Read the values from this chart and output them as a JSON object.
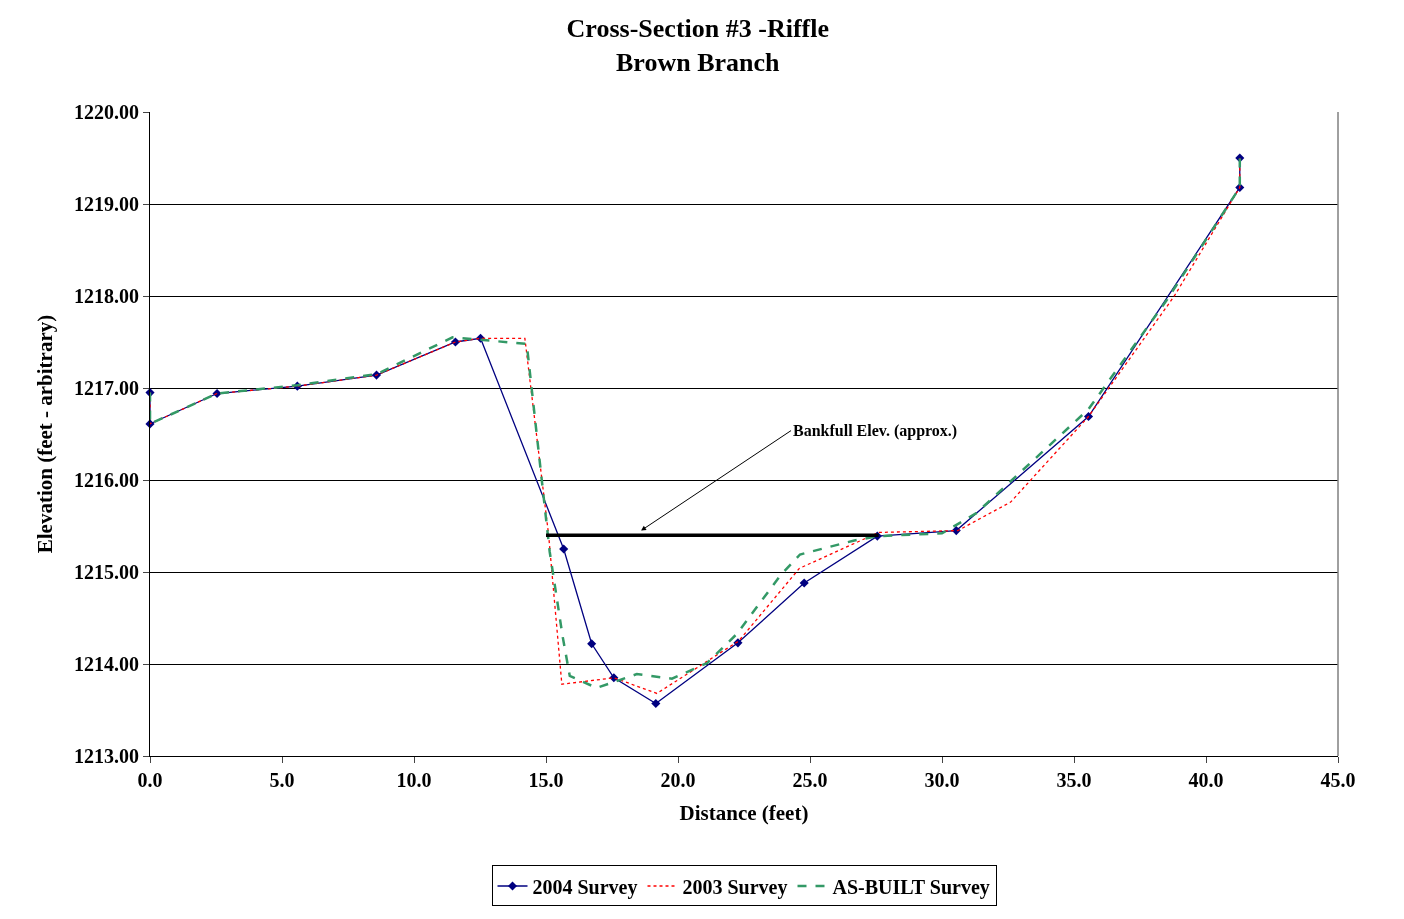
{
  "chart_data": {
    "type": "line",
    "title": "Cross-Section #3 -Riffle",
    "subtitle": "Brown Branch",
    "xlabel": "Distance (feet)",
    "ylabel": "Elevation (feet - arbitrary)",
    "xlim": [
      0,
      45
    ],
    "xticks": [
      {
        "value": 0,
        "label": "0.0"
      },
      {
        "value": 5,
        "label": "5.0"
      },
      {
        "value": 10,
        "label": "10.0"
      },
      {
        "value": 15,
        "label": "15.0"
      },
      {
        "value": 20,
        "label": "20.0"
      },
      {
        "value": 25,
        "label": "25.0"
      },
      {
        "value": 30,
        "label": "30.0"
      },
      {
        "value": 35,
        "label": "35.0"
      },
      {
        "value": 40,
        "label": "40.0"
      },
      {
        "value": 45,
        "label": "45.0"
      }
    ],
    "ylim": [
      1213,
      1220
    ],
    "yticks": [
      {
        "value": 1213,
        "label": "1213.00"
      },
      {
        "value": 1214,
        "label": "1214.00"
      },
      {
        "value": 1215,
        "label": "1215.00"
      },
      {
        "value": 1216,
        "label": "1216.00"
      },
      {
        "value": 1217,
        "label": "1217.00"
      },
      {
        "value": 1218,
        "label": "1218.00"
      },
      {
        "value": 1219,
        "label": "1219.00"
      },
      {
        "value": 1220,
        "label": "1220.00"
      }
    ],
    "grid": "y",
    "legend": "bottom",
    "series": [
      {
        "name": "2004 Survey",
        "color": "#000080",
        "marker": "diamond",
        "line_style": "solid",
        "x": [
          0,
          0,
          2.54,
          5.58,
          8.58,
          11.57,
          12.52,
          15.67,
          16.73,
          17.57,
          19.16,
          22.27,
          24.78,
          27.55,
          30.54,
          35.55,
          41.28,
          41.28
        ],
        "values": [
          1216.95,
          1216.61,
          1216.94,
          1217.02,
          1217.14,
          1217.5,
          1217.54,
          1215.25,
          1214.22,
          1213.85,
          1213.57,
          1214.23,
          1214.88,
          1215.39,
          1215.45,
          1216.69,
          1219.18,
          1219.5
        ]
      },
      {
        "name": "2003 Survey",
        "color": "#ff0000",
        "marker": "none",
        "line_style": "dotted",
        "x": [
          0,
          0,
          2.54,
          5.58,
          8.58,
          11.57,
          12.52,
          14.2,
          15.1,
          15.6,
          17.57,
          19.2,
          22.3,
          24.6,
          27.6,
          30.6,
          32.6,
          35.55,
          38.8,
          41.28,
          41.28
        ],
        "values": [
          1216.95,
          1216.61,
          1216.94,
          1217.02,
          1217.14,
          1217.5,
          1217.54,
          1217.54,
          1215.4,
          1213.78,
          1213.85,
          1213.68,
          1214.25,
          1215.04,
          1215.43,
          1215.45,
          1215.76,
          1216.69,
          1218.0,
          1219.18,
          1219.5
        ]
      },
      {
        "name": "AS-BUILT Survey",
        "color": "#339966",
        "marker": "none",
        "line_style": "dashed",
        "x": [
          0,
          0,
          2.54,
          5.58,
          8.58,
          11.46,
          14.27,
          15.14,
          15.63,
          15.9,
          16.92,
          18.44,
          19.77,
          21.1,
          22.24,
          23.87,
          24.62,
          26.64,
          27.58,
          30.0,
          31.3,
          35.55,
          38.5,
          41.28,
          41.28
        ],
        "values": [
          1216.95,
          1216.61,
          1216.94,
          1217.03,
          1217.15,
          1217.55,
          1217.48,
          1215.22,
          1214.3,
          1213.87,
          1213.74,
          1213.89,
          1213.84,
          1214.01,
          1214.33,
          1214.96,
          1215.19,
          1215.34,
          1215.39,
          1215.42,
          1215.64,
          1216.77,
          1217.95,
          1219.18,
          1219.5
        ]
      },
      {
        "color": "#000000",
        "marker": "none",
        "line_style": "solid",
        "x": [
          15.0,
          27.6
        ],
        "values": [
          1215.4,
          1215.4
        ]
      }
    ],
    "annotations": [
      {
        "text": "Bankfull Elev. (approx.)",
        "x": 18.6,
        "y": 1215.45
      }
    ]
  }
}
